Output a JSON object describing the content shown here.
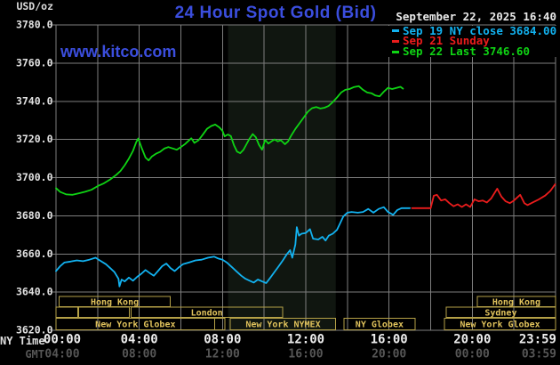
{
  "header": {
    "unit_label": "USD/oz",
    "title": "24 Hour Spot Gold (Bid)",
    "datetime": "September 22, 2025 16:40",
    "watermark": "www.kitco.com"
  },
  "legend": {
    "items": [
      {
        "label": "Sep 19 NY close 3684.00",
        "color": "#12b2f0"
      },
      {
        "label": "Sep 21 Sunday",
        "color": "#ea1c1c"
      },
      {
        "label": "Sep 22 Last 3746.60",
        "color": "#0fd414"
      }
    ]
  },
  "colors": {
    "background": "#000000",
    "grid": "#7e7e7e",
    "title_blue": "#3b4ede",
    "axis_text": "#e2e2e2",
    "ny_tick_text": "#ededed",
    "gmt_tick_text": "#565656",
    "session_border": "#b5a147",
    "session_text": "#e0c25c",
    "band": "#101610",
    "cyan": "#12b2f0",
    "red": "#ea1c1c",
    "green": "#0fd414"
  },
  "chart_data": {
    "type": "line",
    "title": "24 Hour Spot Gold (Bid)",
    "y_axis": {
      "unit": "USD/oz",
      "min": 3620,
      "max": 3780,
      "tick_step": 20,
      "tick_labels": [
        "3780.0",
        "3760.0",
        "3740.0",
        "3720.0",
        "3700.0",
        "3680.0",
        "3660.0",
        "3640.0",
        "3620.0"
      ],
      "tick_values": [
        3780,
        3760,
        3740,
        3720,
        3700,
        3680,
        3660,
        3640,
        3620
      ]
    },
    "x_axis": {
      "ny_label": "NY Time",
      "gmt_label": "GMT",
      "grid_step_hours": 2,
      "tick_hours": [
        0,
        4,
        8,
        12,
        16,
        20,
        23.98
      ],
      "ny_tick_labels": [
        "00:00",
        "04:00",
        "08:00",
        "12:00",
        "16:00",
        "20:00",
        "23:59"
      ],
      "gmt_tick_labels": [
        "04:00",
        "08:00",
        "12:00",
        "16:00",
        "20:00",
        "00:00",
        "03:59"
      ]
    },
    "nymex_band_hours": [
      8.27,
      13.44
    ],
    "series": [
      {
        "name": "Sep 19 NY close 3684.00",
        "color": "#12b2f0",
        "points": [
          [
            0,
            3651
          ],
          [
            0.2,
            3653.6
          ],
          [
            0.4,
            3655.5
          ],
          [
            0.7,
            3656
          ],
          [
            1,
            3656.6
          ],
          [
            1.3,
            3656.2
          ],
          [
            1.6,
            3657
          ],
          [
            1.9,
            3658
          ],
          [
            2.1,
            3656.6
          ],
          [
            2.4,
            3654.6
          ],
          [
            2.6,
            3652.6
          ],
          [
            2.8,
            3650.6
          ],
          [
            3,
            3647
          ],
          [
            3.05,
            3643
          ],
          [
            3.15,
            3646.6
          ],
          [
            3.3,
            3645.6
          ],
          [
            3.5,
            3647.6
          ],
          [
            3.7,
            3646
          ],
          [
            3.9,
            3648
          ],
          [
            4.1,
            3649.6
          ],
          [
            4.3,
            3651.6
          ],
          [
            4.5,
            3650
          ],
          [
            4.7,
            3648.6
          ],
          [
            4.9,
            3651
          ],
          [
            5.1,
            3653.6
          ],
          [
            5.3,
            3655
          ],
          [
            5.5,
            3652.6
          ],
          [
            5.7,
            3651
          ],
          [
            5.9,
            3653
          ],
          [
            6.1,
            3654.6
          ],
          [
            6.4,
            3655.6
          ],
          [
            6.7,
            3656.6
          ],
          [
            7,
            3657
          ],
          [
            7.3,
            3658
          ],
          [
            7.6,
            3658.6
          ],
          [
            7.8,
            3657.6
          ],
          [
            8,
            3657
          ],
          [
            8.2,
            3655.6
          ],
          [
            8.5,
            3652.6
          ],
          [
            8.7,
            3650.6
          ],
          [
            8.9,
            3648.6
          ],
          [
            9.1,
            3647
          ],
          [
            9.3,
            3646
          ],
          [
            9.5,
            3645
          ],
          [
            9.7,
            3646.6
          ],
          [
            9.9,
            3645.6
          ],
          [
            10.1,
            3644.7
          ],
          [
            10.3,
            3647.6
          ],
          [
            10.5,
            3650.6
          ],
          [
            10.7,
            3653.6
          ],
          [
            10.9,
            3656.6
          ],
          [
            11.1,
            3660
          ],
          [
            11.25,
            3662
          ],
          [
            11.35,
            3658
          ],
          [
            11.5,
            3665
          ],
          [
            11.57,
            3674
          ],
          [
            11.67,
            3669.6
          ],
          [
            11.8,
            3670.6
          ],
          [
            12,
            3671
          ],
          [
            12.2,
            3673
          ],
          [
            12.35,
            3668
          ],
          [
            12.6,
            3667.6
          ],
          [
            12.8,
            3669
          ],
          [
            12.95,
            3667
          ],
          [
            13.1,
            3669.6
          ],
          [
            13.3,
            3670.6
          ],
          [
            13.5,
            3672.6
          ],
          [
            13.65,
            3676
          ],
          [
            13.8,
            3679.6
          ],
          [
            14,
            3681.6
          ],
          [
            14.2,
            3682
          ],
          [
            14.5,
            3681.6
          ],
          [
            14.75,
            3682
          ],
          [
            15,
            3683.6
          ],
          [
            15.25,
            3681.6
          ],
          [
            15.5,
            3683.6
          ],
          [
            15.75,
            3684.5
          ],
          [
            15.95,
            3682
          ],
          [
            16.2,
            3680.5
          ],
          [
            16.4,
            3683
          ],
          [
            16.6,
            3684
          ],
          [
            17,
            3684
          ]
        ]
      },
      {
        "name": "Sep 21 Sunday",
        "color": "#ea1c1c",
        "points": [
          [
            17.1,
            3684
          ],
          [
            18,
            3684
          ],
          [
            18.15,
            3690.5
          ],
          [
            18.3,
            3691
          ],
          [
            18.5,
            3688
          ],
          [
            18.7,
            3688.6
          ],
          [
            18.9,
            3686.6
          ],
          [
            19.1,
            3685
          ],
          [
            19.3,
            3686
          ],
          [
            19.5,
            3684.6
          ],
          [
            19.7,
            3686
          ],
          [
            19.9,
            3684.6
          ],
          [
            20.1,
            3688.6
          ],
          [
            20.3,
            3687.6
          ],
          [
            20.5,
            3688
          ],
          [
            20.7,
            3687
          ],
          [
            20.9,
            3689
          ],
          [
            21.2,
            3694.2
          ],
          [
            21.4,
            3690
          ],
          [
            21.6,
            3687.6
          ],
          [
            21.8,
            3686.6
          ],
          [
            22,
            3688
          ],
          [
            22.3,
            3691
          ],
          [
            22.5,
            3686.6
          ],
          [
            22.65,
            3685.6
          ],
          [
            22.9,
            3687
          ],
          [
            23.2,
            3688.6
          ],
          [
            23.5,
            3690.6
          ],
          [
            23.75,
            3693
          ],
          [
            23.98,
            3696.5
          ]
        ]
      },
      {
        "name": "Sep 22 Last 3746.60",
        "color": "#0fd414",
        "points": [
          [
            0,
            3694.5
          ],
          [
            0.2,
            3692.5
          ],
          [
            0.5,
            3691.2
          ],
          [
            0.8,
            3691
          ],
          [
            1.1,
            3691.8
          ],
          [
            1.4,
            3692.6
          ],
          [
            1.7,
            3693.6
          ],
          [
            2,
            3695.5
          ],
          [
            2.3,
            3697
          ],
          [
            2.6,
            3699
          ],
          [
            2.9,
            3701.5
          ],
          [
            3.1,
            3703.5
          ],
          [
            3.3,
            3706.5
          ],
          [
            3.5,
            3710
          ],
          [
            3.7,
            3714
          ],
          [
            3.85,
            3718.5
          ],
          [
            3.95,
            3720.5
          ],
          [
            4.1,
            3716
          ],
          [
            4.3,
            3710.5
          ],
          [
            4.45,
            3709
          ],
          [
            4.6,
            3711
          ],
          [
            4.8,
            3712.5
          ],
          [
            5,
            3713.5
          ],
          [
            5.2,
            3715.2
          ],
          [
            5.4,
            3716
          ],
          [
            5.6,
            3715.3
          ],
          [
            5.8,
            3714.6
          ],
          [
            6,
            3716
          ],
          [
            6.2,
            3717.6
          ],
          [
            6.5,
            3720.6
          ],
          [
            6.65,
            3718.2
          ],
          [
            6.85,
            3719.6
          ],
          [
            7.05,
            3722.5
          ],
          [
            7.25,
            3725.5
          ],
          [
            7.45,
            3727
          ],
          [
            7.65,
            3727.8
          ],
          [
            7.85,
            3726.3
          ],
          [
            8,
            3724.5
          ],
          [
            8.1,
            3721.6
          ],
          [
            8.25,
            3722.6
          ],
          [
            8.4,
            3721.8
          ],
          [
            8.55,
            3717
          ],
          [
            8.7,
            3713.6
          ],
          [
            8.85,
            3712.8
          ],
          [
            9,
            3714.5
          ],
          [
            9.15,
            3717.5
          ],
          [
            9.3,
            3720.5
          ],
          [
            9.45,
            3722.8
          ],
          [
            9.6,
            3721.2
          ],
          [
            9.75,
            3717.2
          ],
          [
            9.9,
            3714.6
          ],
          [
            10.05,
            3719.8
          ],
          [
            10.2,
            3717.8
          ],
          [
            10.35,
            3719
          ],
          [
            10.5,
            3720
          ],
          [
            10.65,
            3719
          ],
          [
            10.8,
            3719.6
          ],
          [
            11,
            3717.5
          ],
          [
            11.15,
            3719
          ],
          [
            11.3,
            3722
          ],
          [
            11.5,
            3725.5
          ],
          [
            11.7,
            3728.5
          ],
          [
            11.9,
            3731.5
          ],
          [
            12.1,
            3734.5
          ],
          [
            12.3,
            3736.4
          ],
          [
            12.5,
            3737
          ],
          [
            12.7,
            3736.2
          ],
          [
            12.9,
            3736.6
          ],
          [
            13.1,
            3737.6
          ],
          [
            13.3,
            3739.6
          ],
          [
            13.5,
            3742
          ],
          [
            13.7,
            3744.6
          ],
          [
            13.9,
            3746
          ],
          [
            14.1,
            3746.4
          ],
          [
            14.3,
            3747.4
          ],
          [
            14.55,
            3747.9
          ],
          [
            14.75,
            3746
          ],
          [
            14.95,
            3744.6
          ],
          [
            15.15,
            3744.2
          ],
          [
            15.35,
            3743
          ],
          [
            15.55,
            3742.6
          ],
          [
            15.75,
            3745
          ],
          [
            15.95,
            3747
          ],
          [
            16.15,
            3746.4
          ],
          [
            16.35,
            3747
          ],
          [
            16.55,
            3747.6
          ],
          [
            16.67,
            3746.6
          ]
        ]
      }
    ],
    "sessions": [
      {
        "row": 0,
        "start_hour": 0.15,
        "end_hour": 5.49,
        "label": "Hong Kong"
      },
      {
        "row": 0,
        "start_hour": 20.24,
        "end_hour": 24,
        "label": "Hong Kong"
      },
      {
        "row": 1,
        "start_hour": 0,
        "end_hour": 1.05,
        "label": ""
      },
      {
        "row": 1,
        "start_hour": 1.09,
        "end_hour": 3.53,
        "label": ""
      },
      {
        "row": 1,
        "start_hour": 3.61,
        "end_hour": 10.88,
        "label": "London"
      },
      {
        "row": 1,
        "start_hour": 18.74,
        "end_hour": 24,
        "label": "Sydney"
      },
      {
        "row": 2,
        "start_hour": 0,
        "end_hour": 7.63,
        "label": "New York Globex"
      },
      {
        "row": 2,
        "start_hour": 7.63,
        "end_hour": 8.12,
        "label": ""
      },
      {
        "row": 2,
        "start_hour": 8.38,
        "end_hour": 13.44,
        "label": "New York NYMEX"
      },
      {
        "row": 2,
        "start_hour": 13.83,
        "end_hour": 17.25,
        "label": "NY Globex"
      },
      {
        "row": 2,
        "start_hour": 18.66,
        "end_hour": 24,
        "label": "New York Globex"
      }
    ]
  }
}
